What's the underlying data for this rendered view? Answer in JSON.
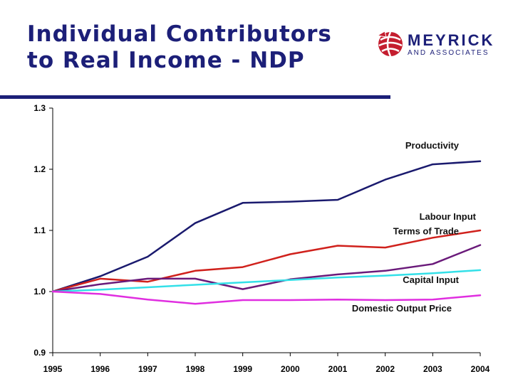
{
  "header": {
    "title_line1": "Individual Contributors",
    "title_line2": "to Real Income - NDP"
  },
  "logo": {
    "name": "MEYRICK",
    "sub": "AND ASSOCIATES",
    "icon": "globe-logo-icon",
    "color": "#c41e2f"
  },
  "colors": {
    "title": "#1c1f78",
    "rule": "#1c1f78"
  },
  "chart_data": {
    "type": "line",
    "x": [
      1995,
      1996,
      1997,
      1998,
      1999,
      2000,
      2001,
      2002,
      2003,
      2004
    ],
    "ylim": [
      0.9,
      1.3
    ],
    "yticks": [
      "0.9",
      "1.0",
      "1.1",
      "1.2",
      "1.3"
    ],
    "xticks": [
      "1995",
      "1996",
      "1997",
      "1998",
      "1999",
      "2000",
      "2001",
      "2002",
      "2003",
      "2004"
    ],
    "grid": false,
    "series": [
      {
        "name": "Productivity",
        "color": "#1a1a6e",
        "values": [
          1.0,
          1.025,
          1.057,
          1.112,
          1.145,
          1.147,
          1.15,
          1.183,
          1.208,
          1.213
        ]
      },
      {
        "name": "Labour Input",
        "color": "#d0211c",
        "values": [
          1.0,
          1.021,
          1.016,
          1.034,
          1.04,
          1.061,
          1.075,
          1.072,
          1.088,
          1.1
        ]
      },
      {
        "name": "Terms of Trade",
        "color": "#6a1a7a",
        "values": [
          1.0,
          1.012,
          1.021,
          1.021,
          1.004,
          1.02,
          1.028,
          1.034,
          1.045,
          1.076
        ]
      },
      {
        "name": "Capital Input",
        "color": "#33e0e8",
        "values": [
          1.0,
          1.003,
          1.007,
          1.011,
          1.015,
          1.019,
          1.023,
          1.026,
          1.03,
          1.035
        ]
      },
      {
        "name": "Domestic Output Price",
        "color": "#e02ee0",
        "values": [
          1.0,
          0.996,
          0.987,
          0.98,
          0.986,
          0.986,
          0.987,
          0.986,
          0.987,
          0.994
        ]
      }
    ]
  }
}
